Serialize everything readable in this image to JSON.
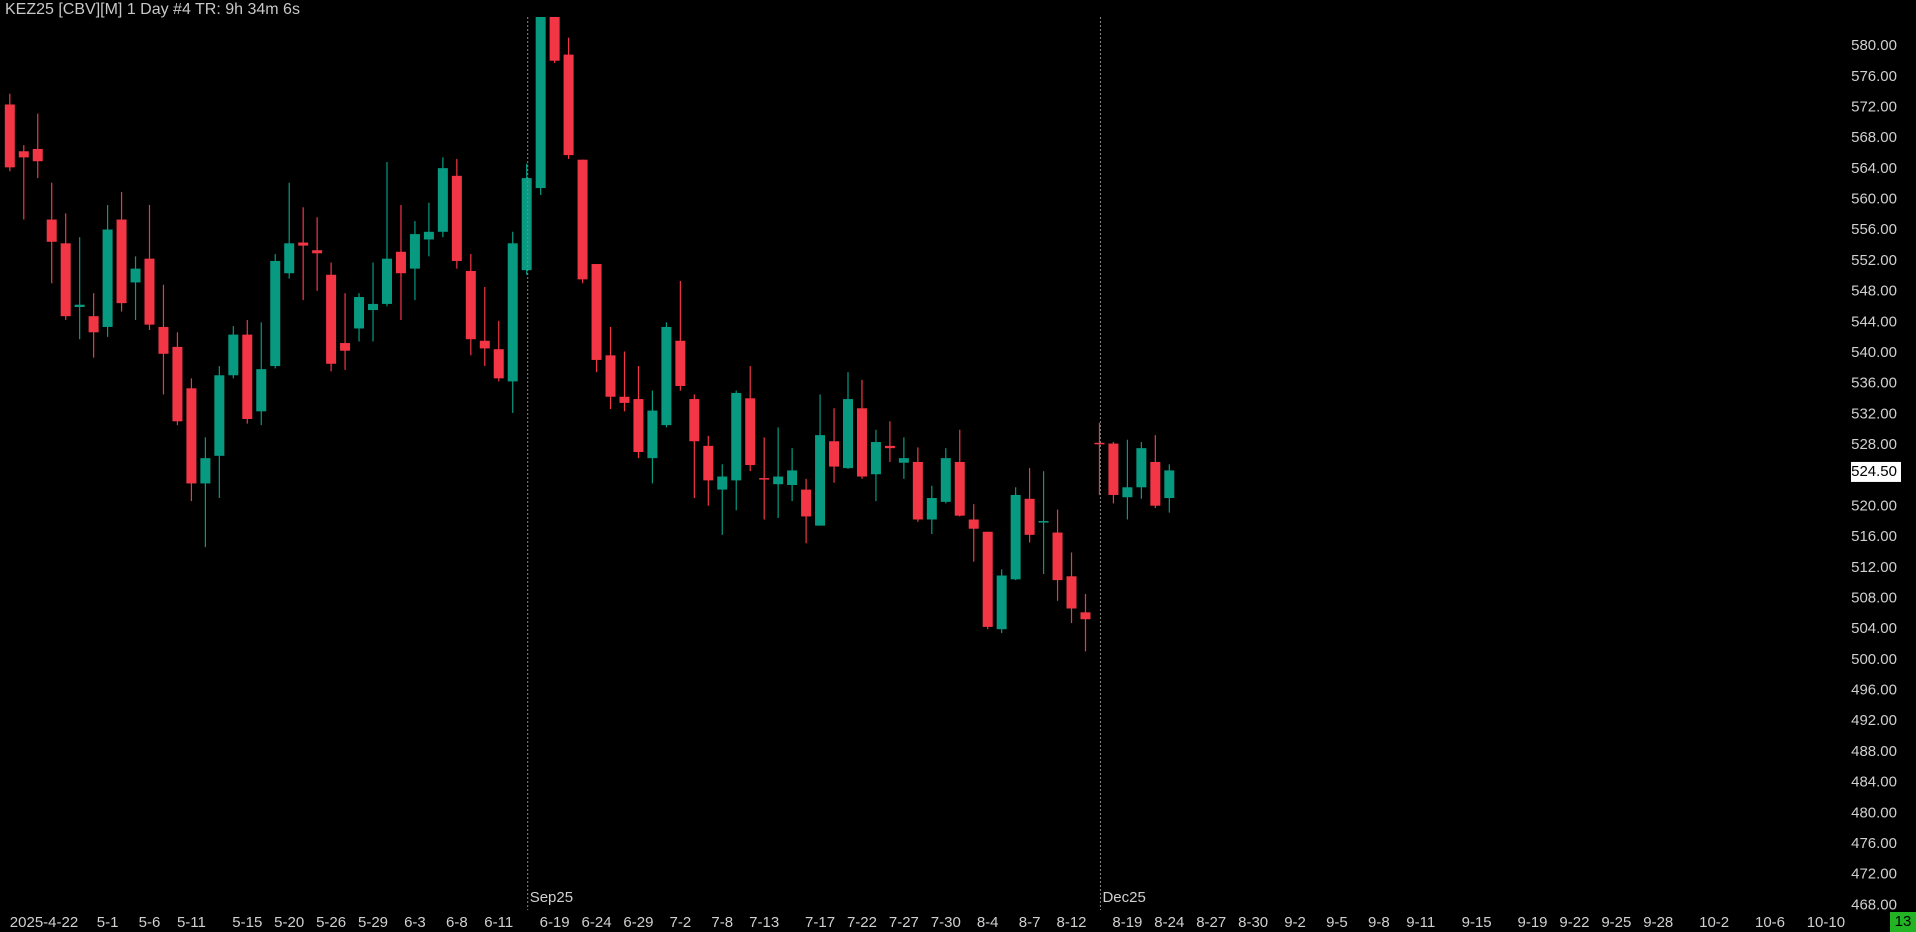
{
  "chart_data": {
    "type": "candlestick",
    "title": "KEZ25 [CBV][M]  1 Day  #4 TR: 9h 34m 6s",
    "categories": [
      "2025-4-22",
      null,
      null,
      null,
      null,
      null,
      null,
      "5-1",
      null,
      null,
      "5-6",
      null,
      null,
      "5-11",
      null,
      null,
      null,
      "5-15",
      null,
      null,
      "5-20",
      null,
      null,
      "5-26",
      null,
      null,
      "5-29",
      null,
      null,
      "6-3",
      null,
      null,
      "6-8",
      null,
      null,
      "6-11",
      null,
      null,
      null,
      "6-19",
      null,
      null,
      "6-24",
      null,
      null,
      "6-29",
      null,
      null,
      "7-2",
      null,
      null,
      "7-8",
      null,
      null,
      "7-13",
      null,
      null,
      null,
      "7-17",
      null,
      null,
      "7-22",
      null,
      null,
      "7-27",
      null,
      null,
      "7-30",
      null,
      null,
      "8-4",
      null,
      null,
      "8-7",
      null,
      null,
      "8-12",
      null,
      null,
      null,
      "8-19",
      null,
      null,
      "8-24",
      null,
      null,
      "8-27",
      null,
      null,
      "8-30",
      null,
      null,
      "9-2",
      null,
      null,
      "9-5",
      null,
      null,
      "9-8",
      null,
      null,
      "9-11",
      null,
      null,
      null,
      "9-15",
      null,
      null,
      null,
      "9-19",
      null,
      null,
      "9-22",
      null,
      null,
      "9-25",
      null,
      null,
      "9-28",
      null,
      null,
      null,
      "10-2",
      null,
      null,
      null,
      "10-6",
      null,
      null,
      null,
      "10-10"
    ],
    "open": [
      572.4,
      566.3,
      566.6,
      557.4,
      554.3,
      546.0,
      544.8,
      543.4,
      557.4,
      549.2,
      552.3,
      543.4,
      540.8,
      535.4,
      523.0,
      526.6,
      537.1,
      542.4,
      532.4,
      538.3,
      550.4,
      554.4,
      553.4,
      550.2,
      541.3,
      543.2,
      545.6,
      546.4,
      553.2,
      551.0,
      554.8,
      555.8,
      563.1,
      550.7,
      541.6,
      540.5,
      536.3,
      550.8,
      561.5,
      584.5,
      578.9,
      565.2,
      551.6,
      539.7,
      534.3,
      534.0,
      526.3,
      530.6,
      541.6,
      534.0,
      527.9,
      522.2,
      523.4,
      534.1,
      523.7,
      522.9,
      522.8,
      522.2,
      517.5,
      528.5,
      525.0,
      532.8,
      524.2,
      527.9,
      525.7,
      525.8,
      518.3,
      520.6,
      525.8,
      518.3,
      516.7,
      504.0,
      510.5,
      521.0,
      517.9,
      516.6,
      510.9,
      506.2,
      528.3,
      528.2,
      521.2,
      522.5,
      525.8,
      521.1,
      null,
      null,
      null,
      null,
      null,
      null,
      null,
      null,
      null,
      null,
      null,
      null,
      null,
      null,
      null,
      null,
      null,
      null,
      null,
      null,
      null,
      null,
      null,
      null,
      null,
      null,
      null,
      null,
      null,
      null,
      null,
      null,
      null,
      null,
      null,
      null,
      null,
      null,
      null,
      null,
      null,
      null,
      null,
      null,
      null,
      null,
      null
    ],
    "high": [
      573.8,
      567.1,
      571.2,
      562.2,
      558.2,
      555.1,
      547.8,
      559.3,
      561.0,
      552.6,
      559.3,
      548.9,
      542.7,
      536.7,
      529.0,
      538.3,
      543.5,
      544.3,
      544.0,
      552.9,
      562.2,
      559.0,
      557.7,
      551.8,
      547.8,
      547.8,
      551.8,
      564.9,
      559.3,
      557.2,
      559.6,
      565.5,
      565.3,
      552.9,
      548.6,
      544.2,
      555.8,
      564.7,
      586.0,
      587.0,
      581.1,
      565.2,
      551.6,
      543.4,
      540.2,
      538.3,
      535.1,
      544.0,
      549.4,
      534.6,
      529.2,
      525.5,
      535.1,
      538.3,
      529.0,
      530.3,
      527.6,
      523.6,
      534.6,
      532.8,
      537.5,
      536.5,
      530.0,
      531.1,
      529.0,
      527.7,
      522.7,
      527.6,
      530.0,
      520.3,
      516.7,
      511.8,
      522.5,
      525.0,
      524.6,
      519.6,
      514.0,
      508.6,
      530.9,
      528.4,
      528.7,
      528.4,
      529.3,
      525.5,
      null,
      null,
      null,
      null,
      null,
      null,
      null,
      null,
      null,
      null,
      null,
      null,
      null,
      null,
      null,
      null,
      null,
      null,
      null,
      null,
      null,
      null,
      null,
      null,
      null,
      null,
      null,
      null,
      null,
      null,
      null,
      null,
      null,
      null,
      null,
      null,
      null,
      null,
      null,
      null,
      null,
      null,
      null,
      null,
      null,
      null,
      null
    ],
    "low": [
      563.7,
      557.4,
      562.8,
      549.1,
      544.3,
      541.8,
      539.4,
      542.1,
      545.4,
      544.3,
      543.0,
      534.6,
      530.6,
      520.7,
      514.7,
      521.1,
      536.7,
      530.8,
      530.6,
      538.0,
      549.7,
      546.9,
      548.1,
      537.6,
      537.8,
      541.5,
      541.5,
      546.1,
      544.3,
      546.9,
      552.6,
      555.1,
      551.0,
      539.7,
      538.3,
      536.3,
      532.2,
      550.2,
      560.6,
      577.8,
      565.3,
      549.1,
      537.5,
      532.7,
      532.4,
      526.3,
      523.0,
      530.3,
      535.1,
      521.1,
      520.1,
      516.3,
      519.5,
      524.6,
      518.3,
      518.5,
      520.7,
      515.2,
      517.5,
      523.1,
      524.9,
      523.6,
      520.7,
      525.8,
      523.6,
      518.0,
      516.4,
      520.4,
      518.7,
      512.8,
      504.0,
      503.5,
      510.4,
      515.3,
      511.2,
      507.7,
      504.8,
      501.1,
      521.5,
      520.4,
      518.3,
      521.0,
      519.8,
      519.2,
      null,
      null,
      null,
      null,
      null,
      null,
      null,
      null,
      null,
      null,
      null,
      null,
      null,
      null,
      null,
      null,
      null,
      null,
      null,
      null,
      null,
      null,
      null,
      null,
      null,
      null,
      null,
      null,
      null,
      null,
      null,
      null,
      null,
      null,
      null,
      null,
      null,
      null,
      null,
      null,
      null,
      null,
      null,
      null,
      null,
      null,
      null
    ],
    "close": [
      564.2,
      565.5,
      565.0,
      554.5,
      544.8,
      546.3,
      542.7,
      556.1,
      546.5,
      551.0,
      543.7,
      539.9,
      531.1,
      523.0,
      526.3,
      537.1,
      542.4,
      531.4,
      537.9,
      552.0,
      554.3,
      554.0,
      553.0,
      538.6,
      540.3,
      547.3,
      546.4,
      552.3,
      550.4,
      555.5,
      555.8,
      564.1,
      552.0,
      541.8,
      540.6,
      536.7,
      554.3,
      562.8,
      585.0,
      578.1,
      565.8,
      549.6,
      539.1,
      534.3,
      533.5,
      527.1,
      532.5,
      543.4,
      535.7,
      528.5,
      523.4,
      523.9,
      534.8,
      525.4,
      523.5,
      523.9,
      524.7,
      518.7,
      529.3,
      525.2,
      534.0,
      523.9,
      528.4,
      527.6,
      526.3,
      518.3,
      521.1,
      526.3,
      518.8,
      517.1,
      504.3,
      511.0,
      521.5,
      516.3,
      518.1,
      510.4,
      506.7,
      505.3,
      528.1,
      521.5,
      522.5,
      527.6,
      520.1,
      524.7,
      null,
      null,
      null,
      null,
      null,
      null,
      null,
      null,
      null,
      null,
      null,
      null,
      null,
      null,
      null,
      null,
      null,
      null,
      null,
      null,
      null,
      null,
      null,
      null,
      null,
      null,
      null,
      null,
      null,
      null,
      null,
      null,
      null,
      null,
      null,
      null,
      null,
      null,
      null,
      null,
      null,
      null,
      null,
      null,
      null,
      null,
      null
    ],
    "up_color": "#089981",
    "down_color": "#f23645",
    "ylim": [
      467.4,
      583.8
    ],
    "yticks": [
      {
        "value": 468,
        "label": "468.00"
      },
      {
        "value": 472,
        "label": "472.00"
      },
      {
        "value": 476,
        "label": "476.00"
      },
      {
        "value": 480,
        "label": "480.00"
      },
      {
        "value": 484,
        "label": "484.00"
      },
      {
        "value": 488,
        "label": "488.00"
      },
      {
        "value": 492,
        "label": "492.00"
      },
      {
        "value": 496,
        "label": "496.00"
      },
      {
        "value": 500,
        "label": "500.00"
      },
      {
        "value": 504,
        "label": "504.00"
      },
      {
        "value": 508,
        "label": "508.00"
      },
      {
        "value": 512,
        "label": "512.00"
      },
      {
        "value": 516,
        "label": "516.00"
      },
      {
        "value": 520,
        "label": "520.00"
      },
      {
        "value": 524,
        "label": "524.00"
      },
      {
        "value": 528,
        "label": "528.00"
      },
      {
        "value": 532,
        "label": "532.00"
      },
      {
        "value": 536,
        "label": "536.00"
      },
      {
        "value": 540,
        "label": "540.00"
      },
      {
        "value": 544,
        "label": "544.00"
      },
      {
        "value": 548,
        "label": "548.00"
      },
      {
        "value": 552,
        "label": "552.00"
      },
      {
        "value": 556,
        "label": "556.00"
      },
      {
        "value": 560,
        "label": "560.00"
      },
      {
        "value": 564,
        "label": "564.00"
      },
      {
        "value": 568,
        "label": "568.00"
      },
      {
        "value": 572,
        "label": "572.00"
      },
      {
        "value": 576,
        "label": "576.00"
      },
      {
        "value": 580,
        "label": "580.00"
      }
    ],
    "last_price": {
      "value": 524.5,
      "label": "524.50"
    },
    "markers": [
      {
        "label": "Sep25",
        "x": 37
      },
      {
        "label": "Dec25",
        "x": 78
      }
    ],
    "countdown": "13"
  }
}
